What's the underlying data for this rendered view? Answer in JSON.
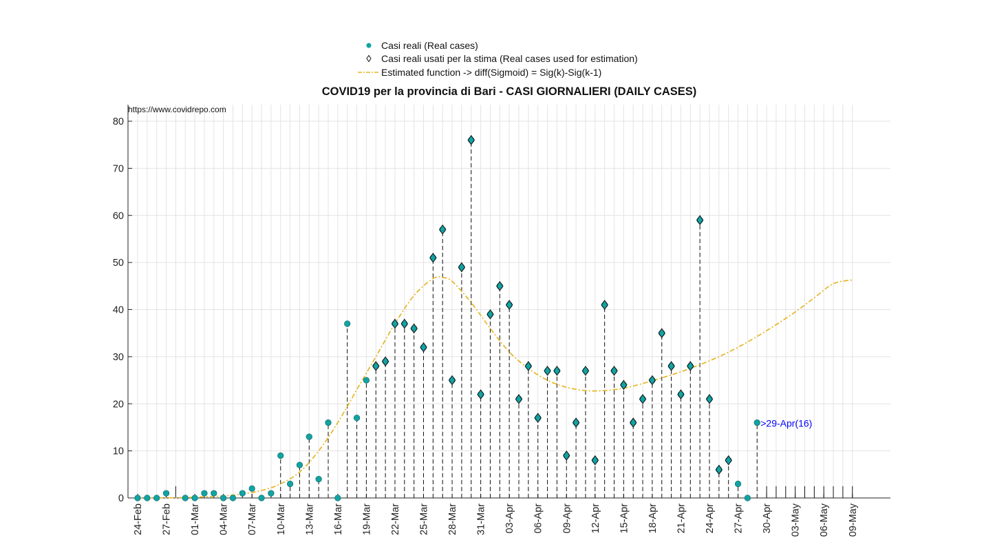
{
  "title": "COVID19 per la provincia di Bari - CASI GIORNALIERI (DAILY CASES)",
  "source_label": "https://www.covidrepo.com",
  "legend": {
    "real": "Casi reali (Real cases)",
    "used": "Casi reali usati per la stima (Real cases used for estimation)",
    "estimated": "Estimated function -> diff(Sigmoid) = Sig(k)-Sig(k-1)"
  },
  "annotation": ">29-Apr(16)",
  "colors": {
    "marker": "#12a3a3",
    "marker_edge": "#0b5f60",
    "curve": "#e6b523",
    "annotation": "#0000ff",
    "grid": "#e3e3e3"
  },
  "chart_data": {
    "type": "scatter",
    "title": "COVID19 per la provincia di Bari - CASI GIORNALIERI (DAILY CASES)",
    "xlabel": "",
    "ylabel": "",
    "ylim": [
      0,
      80
    ],
    "yticks": [
      0,
      10,
      20,
      30,
      40,
      50,
      60,
      70,
      80
    ],
    "grid": true,
    "legend_position": "top-center",
    "x_start": "24-Feb",
    "x_end": "09-May",
    "xtick_labels": [
      "24-Feb",
      "27-Feb",
      "01-Mar",
      "04-Mar",
      "07-Mar",
      "10-Mar",
      "13-Mar",
      "16-Mar",
      "19-Mar",
      "22-Mar",
      "25-Mar",
      "28-Mar",
      "31-Mar",
      "03-Apr",
      "06-Apr",
      "09-Apr",
      "12-Apr",
      "15-Apr",
      "18-Apr",
      "21-Apr",
      "24-Apr",
      "27-Apr",
      "30-Apr",
      "03-May",
      "06-May",
      "09-May"
    ],
    "series": [
      {
        "name": "Casi reali (Real cases)",
        "dates": [
          "24-Feb",
          "25-Feb",
          "26-Feb",
          "27-Feb",
          "28-Feb",
          "29-Feb",
          "01-Mar",
          "02-Mar",
          "03-Mar",
          "04-Mar",
          "05-Mar",
          "06-Mar",
          "07-Mar",
          "08-Mar",
          "09-Mar",
          "10-Mar",
          "11-Mar",
          "12-Mar",
          "13-Mar",
          "14-Mar",
          "15-Mar",
          "16-Mar",
          "17-Mar",
          "18-Mar",
          "19-Mar",
          "20-Mar",
          "21-Mar",
          "22-Mar",
          "23-Mar",
          "24-Mar",
          "25-Mar",
          "26-Mar",
          "27-Mar",
          "28-Mar",
          "29-Mar",
          "30-Mar",
          "31-Mar",
          "01-Apr",
          "02-Apr",
          "03-Apr",
          "04-Apr",
          "05-Apr",
          "06-Apr",
          "07-Apr",
          "08-Apr",
          "09-Apr",
          "10-Apr",
          "11-Apr",
          "12-Apr",
          "13-Apr",
          "14-Apr",
          "15-Apr",
          "16-Apr",
          "17-Apr",
          "18-Apr",
          "19-Apr",
          "20-Apr",
          "21-Apr",
          "22-Apr",
          "23-Apr",
          "24-Apr",
          "25-Apr",
          "26-Apr",
          "27-Apr",
          "28-Apr",
          "29-Apr"
        ],
        "values": [
          0,
          0,
          0,
          1,
          null,
          0,
          0,
          1,
          1,
          0,
          0,
          1,
          2,
          0,
          1,
          9,
          3,
          7,
          13,
          4,
          16,
          0,
          37,
          17,
          25,
          28,
          29,
          37,
          37,
          36,
          32,
          51,
          57,
          25,
          49,
          76,
          22,
          39,
          45,
          41,
          21,
          28,
          17,
          27,
          27,
          9,
          16,
          27,
          8,
          41,
          27,
          24,
          16,
          21,
          25,
          35,
          28,
          22,
          28,
          59,
          21,
          6,
          8,
          3,
          0,
          16
        ]
      },
      {
        "name": "Casi reali usati per la stima (Real cases used for estimation)",
        "dates": [
          "20-Mar",
          "21-Mar",
          "22-Mar",
          "23-Mar",
          "24-Mar",
          "25-Mar",
          "26-Mar",
          "27-Mar",
          "28-Mar",
          "29-Mar",
          "30-Mar",
          "31-Mar",
          "01-Apr",
          "02-Apr",
          "03-Apr",
          "04-Apr",
          "05-Apr",
          "06-Apr",
          "07-Apr",
          "08-Apr",
          "09-Apr",
          "10-Apr",
          "11-Apr",
          "12-Apr",
          "13-Apr",
          "14-Apr",
          "15-Apr",
          "16-Apr",
          "17-Apr",
          "18-Apr",
          "19-Apr",
          "20-Apr",
          "21-Apr",
          "22-Apr",
          "23-Apr",
          "24-Apr",
          "25-Apr",
          "26-Apr"
        ],
        "values": [
          28,
          29,
          37,
          37,
          36,
          32,
          51,
          57,
          25,
          49,
          76,
          22,
          39,
          45,
          41,
          21,
          28,
          17,
          27,
          27,
          9,
          16,
          27,
          8,
          41,
          27,
          24,
          16,
          21,
          25,
          35,
          28,
          22,
          28,
          59,
          21,
          6,
          8
        ]
      },
      {
        "name": "Estimated function -> diff(Sigmoid) = Sig(k)-Sig(k-1)",
        "dates": [
          "24-Feb",
          "29-Feb",
          "05-Mar",
          "08-Mar",
          "10-Mar",
          "12-Mar",
          "14-Mar",
          "16-Mar",
          "18-Mar",
          "20-Mar",
          "22-Mar",
          "24-Mar",
          "26-Mar",
          "27-Mar",
          "28-Mar",
          "30-Mar",
          "01-Apr",
          "03-Apr",
          "05-Apr",
          "07-Apr",
          "09-Apr",
          "11-Apr",
          "13-Apr",
          "15-Apr",
          "17-Apr",
          "19-Apr",
          "21-Apr",
          "23-Apr",
          "25-Apr",
          "27-Apr",
          "29-Apr",
          "01-May",
          "03-May",
          "05-May",
          "07-May",
          "09-May"
        ],
        "values": [
          0,
          0.1,
          0.6,
          1.6,
          3,
          5.5,
          10,
          16,
          23,
          30,
          37,
          43,
          46.6,
          46.8,
          46,
          41.5,
          36,
          31,
          27.5,
          25,
          23.5,
          22.8,
          22.8,
          23.3,
          24.3,
          25.5,
          26.8,
          28.3,
          30,
          32,
          34.3,
          36.8,
          39.5,
          42.5,
          45.5,
          46.3
        ]
      }
    ],
    "annotation": {
      "text": ">29-Apr(16)",
      "x": "29-Apr",
      "y": 16
    }
  }
}
